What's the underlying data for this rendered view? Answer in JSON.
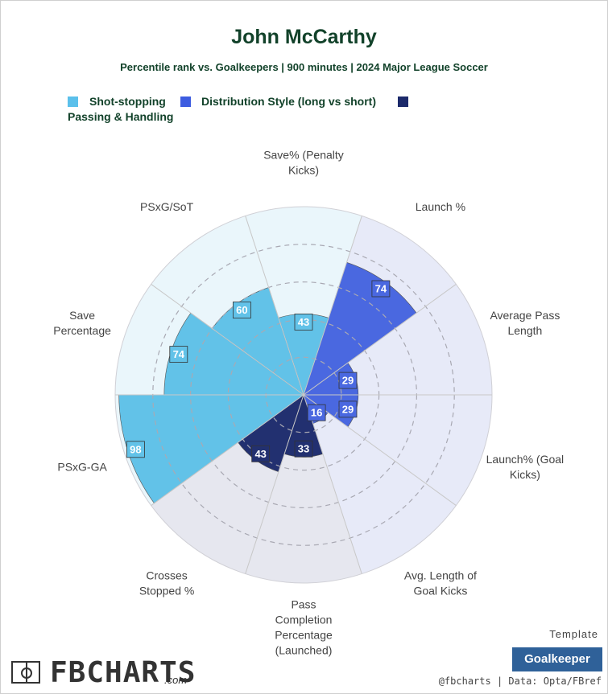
{
  "title": "John McCarthy",
  "subtitle": "Percentile rank vs. Goalkeepers | 900 minutes | 2024 Major League Soccer",
  "legend": [
    {
      "label": "Shot-stopping",
      "color": "#5bc0eb"
    },
    {
      "label": "Distribution Style (long vs short)",
      "color": "#3d5ce0"
    },
    {
      "label": "Passing & Handling",
      "color": "#1c2a6b"
    }
  ],
  "chart_data": {
    "type": "polar-bar",
    "range": [
      0,
      100
    ],
    "categories": [
      {
        "label": "Save% (Penalty Kicks)",
        "value": 43,
        "group": "Shot-stopping"
      },
      {
        "label": "Launch %",
        "value": 74,
        "group": "Distribution Style (long vs short)"
      },
      {
        "label": "Average Pass Length",
        "value": 29,
        "group": "Distribution Style (long vs short)"
      },
      {
        "label": "Launch% (Goal Kicks)",
        "value": 29,
        "group": "Distribution Style (long vs short)"
      },
      {
        "label": "Avg. Length of Goal Kicks",
        "value": 16,
        "group": "Distribution Style (long vs short)"
      },
      {
        "label": "Pass Completion Percentage (Launched)",
        "value": 33,
        "group": "Passing & Handling"
      },
      {
        "label": "Crosses Stopped %",
        "value": 43,
        "group": "Passing & Handling"
      },
      {
        "label": "PSxG-GA",
        "value": 98,
        "group": "Shot-stopping"
      },
      {
        "label": "Save Percentage",
        "value": 74,
        "group": "Shot-stopping"
      },
      {
        "label": "PSxG/SoT",
        "value": 60,
        "group": "Shot-stopping"
      }
    ],
    "colors": {
      "Shot-stopping": {
        "bar": "#62c2e8",
        "bg": "#eaf6fb"
      },
      "Distribution Style (long vs short)": {
        "bar": "#4a68e0",
        "bg": "#e7eaf8"
      },
      "Passing & Handling": {
        "bar": "#223070",
        "bg": "#e6e7ef"
      }
    },
    "gridlines": [
      20,
      40,
      60,
      80
    ]
  },
  "footer": {
    "logo_text": "FBCHARTS",
    "logo_suffix": ".com",
    "template_label": "Template",
    "template_value": "Goalkeeper",
    "credit": "@fbcharts | Data: Opta/FBref"
  }
}
